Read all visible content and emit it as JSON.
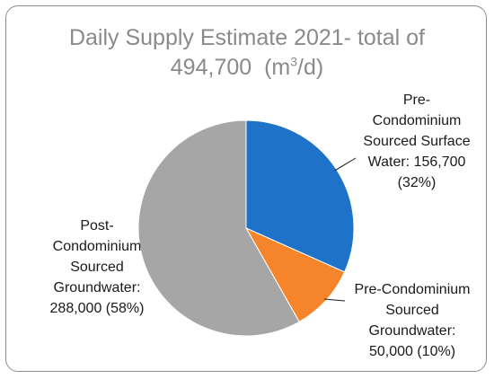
{
  "chart_data": {
    "type": "pie",
    "title_line1": "Daily Supply Estimate 2021- total of",
    "title_line2_value": "494,700",
    "title_unit_pre": "(m",
    "title_unit_sup": "3",
    "title_unit_post": "/d)",
    "start_angle_deg": 0,
    "direction": "clockwise",
    "legend": "none",
    "slices": [
      {
        "key": "surface",
        "value": 156700,
        "percent": 32,
        "color": "#1e73c8",
        "label_lines": [
          "Pre-",
          "Condominium",
          "Sourced Surface",
          "Water: 156,700",
          "(32%)"
        ]
      },
      {
        "key": "pre_ground",
        "value": 50000,
        "percent": 10,
        "color": "#f5842a",
        "label_lines": [
          "Pre-Condominium",
          "Sourced",
          "Groundwater:",
          "50,000 (10%)"
        ]
      },
      {
        "key": "post_ground",
        "value": 288000,
        "percent": 58,
        "color": "#a6a6a6",
        "label_lines": [
          "Post-",
          "Condominium",
          "Sourced",
          "Groundwater:",
          "288,000 (58%)"
        ]
      }
    ]
  }
}
